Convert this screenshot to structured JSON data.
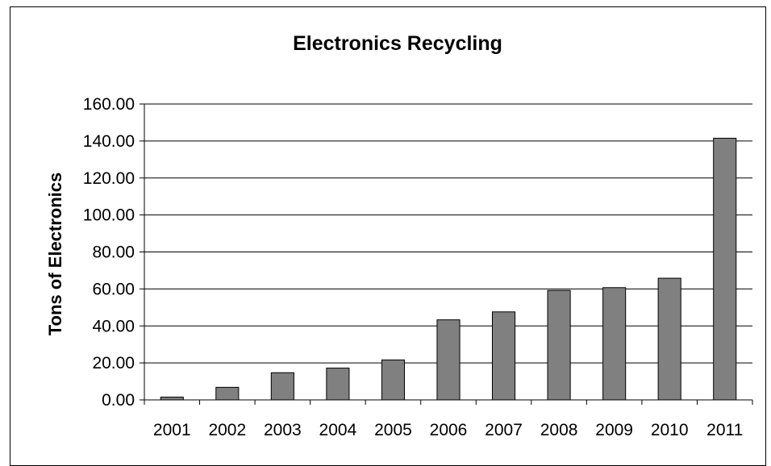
{
  "chart_data": {
    "type": "bar",
    "title": "Electronics Recycling",
    "xlabel": "",
    "ylabel": "Tons of Electronics",
    "categories": [
      "2001",
      "2002",
      "2003",
      "2004",
      "2005",
      "2006",
      "2007",
      "2008",
      "2009",
      "2010",
      "2011"
    ],
    "values": [
      1.5,
      6.8,
      14.7,
      17.2,
      21.6,
      43.3,
      47.6,
      59.2,
      60.7,
      65.8,
      141.5
    ],
    "ylim": [
      0,
      160
    ],
    "yticks": [
      "0.00",
      "20.00",
      "40.00",
      "60.00",
      "80.00",
      "100.00",
      "120.00",
      "140.00",
      "160.00"
    ],
    "grid": true,
    "legend": "none",
    "colors": {
      "bar_fill": "#808080",
      "bar_stroke": "#000000",
      "grid": "#000000",
      "background": "#ffffff"
    }
  }
}
